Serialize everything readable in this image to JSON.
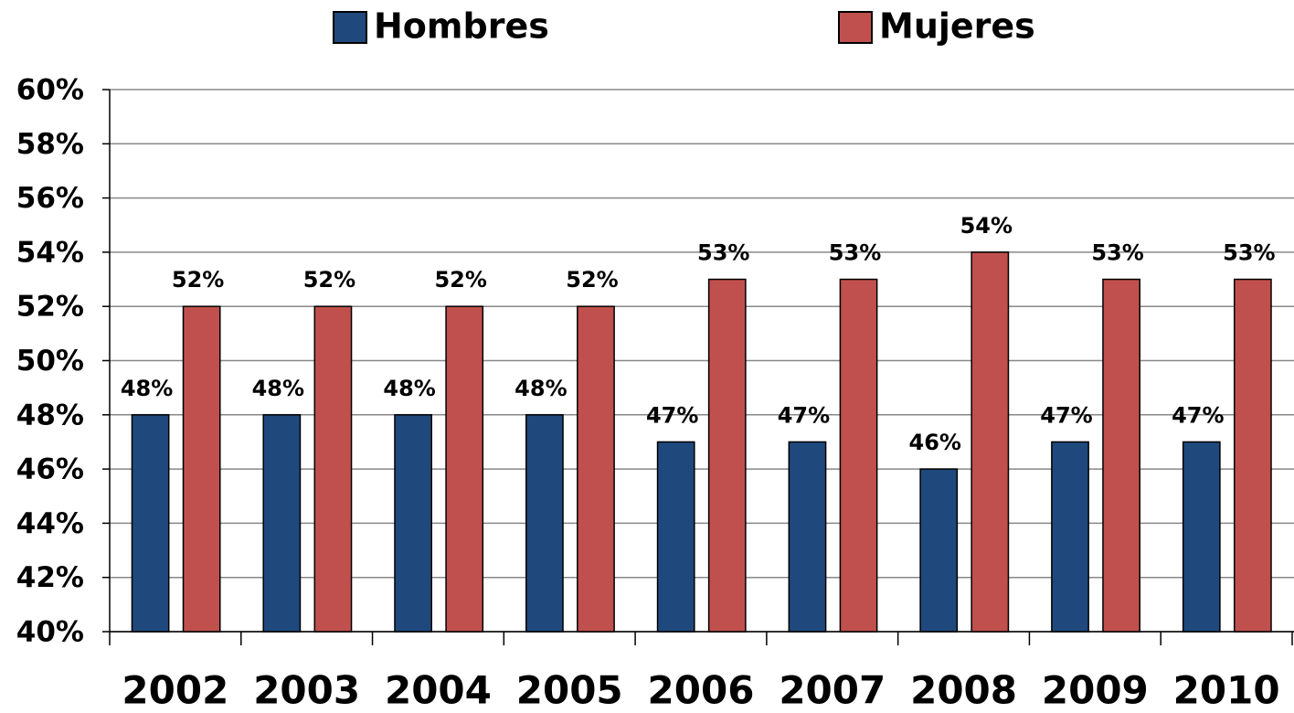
{
  "chart_data": {
    "type": "bar",
    "categories": [
      "2002",
      "2003",
      "2004",
      "2005",
      "2006",
      "2007",
      "2008",
      "2009",
      "2010"
    ],
    "series": [
      {
        "name": "Hombres",
        "color": "#1f497d",
        "values": [
          48,
          48,
          48,
          48,
          47,
          47,
          46,
          47,
          47
        ],
        "value_labels": [
          "48%",
          "48%",
          "48%",
          "48%",
          "47%",
          "47%",
          "46%",
          "47%",
          "47%"
        ]
      },
      {
        "name": "Mujeres",
        "color": "#c0504d",
        "values": [
          52,
          52,
          52,
          52,
          53,
          53,
          54,
          53,
          53
        ],
        "value_labels": [
          "52%",
          "52%",
          "52%",
          "52%",
          "53%",
          "53%",
          "54%",
          "53%",
          "53%"
        ]
      }
    ],
    "ylim": [
      40,
      60
    ],
    "yticks": [
      {
        "value": 40,
        "label": "40%"
      },
      {
        "value": 42,
        "label": "42%"
      },
      {
        "value": 44,
        "label": "44%"
      },
      {
        "value": 46,
        "label": "46%"
      },
      {
        "value": 48,
        "label": "48%"
      },
      {
        "value": 50,
        "label": "50%"
      },
      {
        "value": 52,
        "label": "52%"
      },
      {
        "value": 54,
        "label": "54%"
      },
      {
        "value": 56,
        "label": "56%"
      },
      {
        "value": 58,
        "label": "58%"
      },
      {
        "value": 60,
        "label": "60%"
      }
    ],
    "grid": true,
    "legend": "top"
  }
}
